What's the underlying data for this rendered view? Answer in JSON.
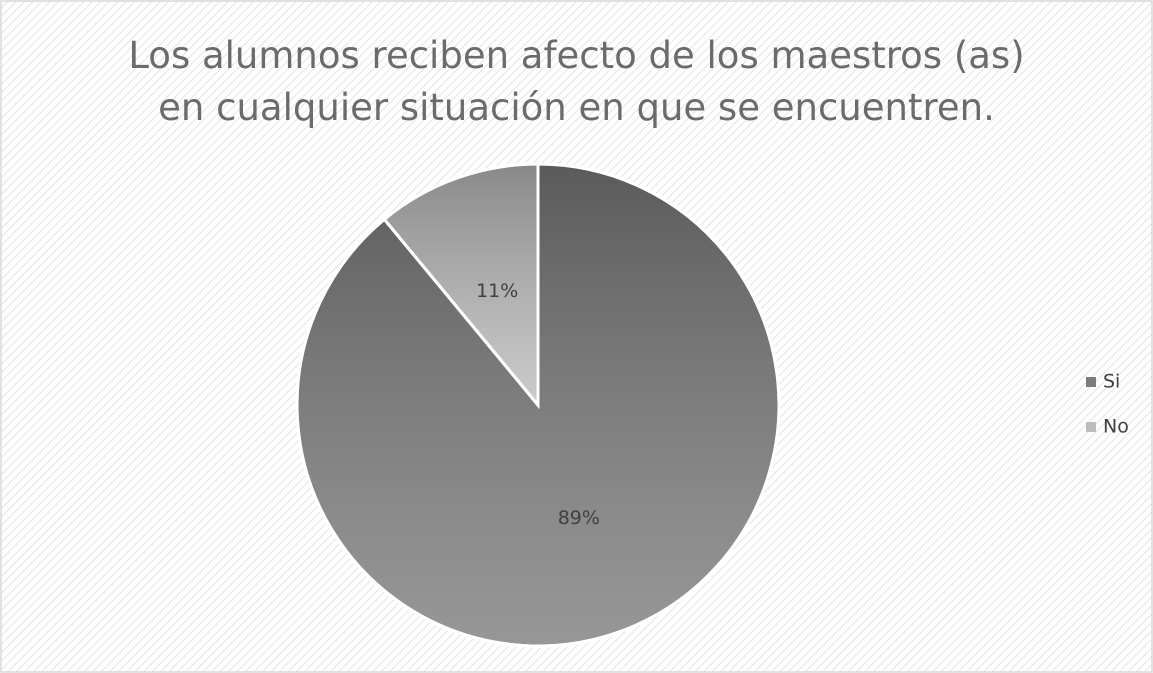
{
  "chart_data": {
    "type": "pie",
    "title": "Los alumnos reciben afecto de los maestros (as) en cualquier situación en que se encuentren.",
    "categories": [
      "Si",
      "No"
    ],
    "values": [
      89,
      11
    ],
    "value_labels": [
      "89%",
      "11%"
    ],
    "colors": [
      "#7d7d7d",
      "#bdbdbd"
    ],
    "legend": "right"
  }
}
